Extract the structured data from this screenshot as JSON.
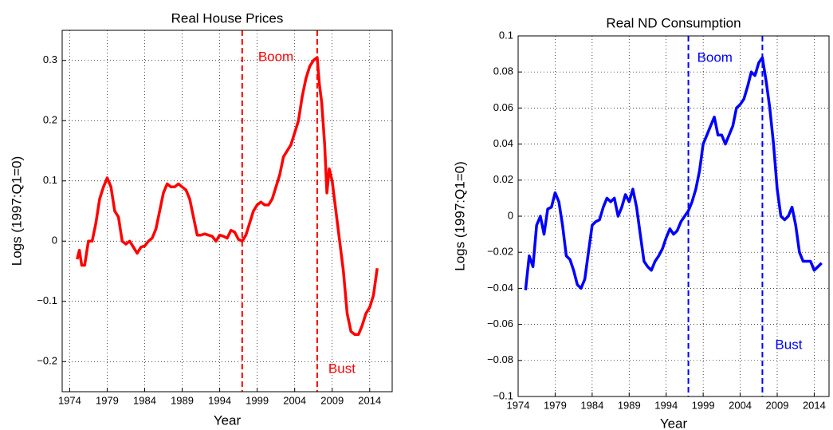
{
  "chart_data": [
    {
      "type": "line",
      "title": "Real House Prices",
      "x_label": "Year",
      "y_label": "Logs (1997:Q1=0)",
      "xlim": [
        1973,
        2017
      ],
      "ylim": [
        -0.25,
        0.35
      ],
      "xticks": [
        1974,
        1979,
        1984,
        1989,
        1994,
        1999,
        2004,
        2009,
        2014
      ],
      "yticks": [
        {
          "value": -0.2,
          "label": "−0.2"
        },
        {
          "value": -0.1,
          "label": "−0.1"
        },
        0,
        0.1,
        0.2,
        0.3
      ],
      "grid": true,
      "vlines": [
        {
          "x": 1997,
          "label": "Boom"
        },
        {
          "x": 2007,
          "label": "Bust"
        }
      ],
      "series": [
        {
          "color": "#ff0000",
          "x": [
            1975.0,
            1975.3,
            1975.6,
            1976,
            1976.5,
            1977,
            1977.5,
            1978,
            1978.5,
            1979,
            1979.5,
            1980,
            1980.5,
            1981,
            1981.5,
            1982,
            1982.5,
            1983,
            1983.5,
            1984,
            1984.5,
            1985,
            1985.5,
            1986,
            1986.5,
            1987,
            1987.5,
            1988,
            1988.5,
            1989,
            1989.5,
            1990,
            1990.5,
            1991,
            1991.5,
            1992,
            1992.5,
            1993,
            1993.5,
            1994,
            1994.5,
            1995,
            1995.5,
            1996,
            1996.5,
            1997,
            1997.5,
            1998,
            1998.5,
            1999,
            1999.5,
            2000,
            2000.5,
            2001,
            2001.5,
            2002,
            2002.5,
            2003,
            2003.5,
            2004,
            2004.5,
            2005,
            2005.5,
            2006,
            2006.5,
            2007,
            2007.3,
            2007.6,
            2008,
            2008.3,
            2008.6,
            2009,
            2009.5,
            2010,
            2010.5,
            2011,
            2011.5,
            2012,
            2012.5,
            2013,
            2013.5,
            2014,
            2014.5,
            2015
          ],
          "values": [
            -0.03,
            -0.015,
            -0.04,
            -0.04,
            0,
            0,
            0.03,
            0.07,
            0.09,
            0.105,
            0.09,
            0.05,
            0.04,
            0.0,
            -0.005,
            0,
            -0.01,
            -0.02,
            -0.01,
            -0.008,
            0.0,
            0.005,
            0.02,
            0.05,
            0.08,
            0.095,
            0.09,
            0.09,
            0.095,
            0.09,
            0.085,
            0.07,
            0.04,
            0.01,
            0.01,
            0.012,
            0.01,
            0.008,
            0.0,
            0.01,
            0.008,
            0.005,
            0.018,
            0.015,
            0.003,
            0.0,
            0.01,
            0.03,
            0.05,
            0.06,
            0.065,
            0.06,
            0.06,
            0.07,
            0.09,
            0.11,
            0.14,
            0.15,
            0.16,
            0.18,
            0.2,
            0.24,
            0.27,
            0.29,
            0.3,
            0.305,
            0.26,
            0.23,
            0.16,
            0.08,
            0.12,
            0.1,
            0.05,
            0.0,
            -0.05,
            -0.12,
            -0.15,
            -0.155,
            -0.155,
            -0.14,
            -0.12,
            -0.11,
            -0.09,
            -0.045
          ]
        }
      ]
    },
    {
      "type": "line",
      "title": "Real ND Consumption",
      "x_label": "Year",
      "y_label": "Logs (1997:Q1=0)",
      "xlim": [
        1974,
        2016
      ],
      "ylim": [
        -0.1,
        0.1
      ],
      "xticks": [
        1974,
        1979,
        1984,
        1989,
        1994,
        1999,
        2004,
        2009,
        2014
      ],
      "yticks": [
        {
          "value": -0.1,
          "label": "−0.1"
        },
        {
          "value": -0.08,
          "label": "−0.08"
        },
        {
          "value": -0.06,
          "label": "−0.06"
        },
        {
          "value": -0.04,
          "label": "−0.04"
        },
        {
          "value": -0.02,
          "label": "−0.02"
        },
        0,
        0.02,
        0.04,
        0.06,
        0.08,
        0.1
      ],
      "grid": true,
      "vlines": [
        {
          "x": 1997,
          "label": "Boom"
        },
        {
          "x": 2007,
          "label": "Bust"
        }
      ],
      "series": [
        {
          "color": "#0000ff",
          "x": [
            1975,
            1975.5,
            1976,
            1976.5,
            1977,
            1977.5,
            1978,
            1978.5,
            1979,
            1979.5,
            1980,
            1980.5,
            1981,
            1981.5,
            1982,
            1982.5,
            1983,
            1983.5,
            1984,
            1984.5,
            1985,
            1985.5,
            1986,
            1986.5,
            1987,
            1987.5,
            1988,
            1988.5,
            1989,
            1989.5,
            1990,
            1990.5,
            1991,
            1991.5,
            1992,
            1992.5,
            1993,
            1993.5,
            1994,
            1994.5,
            1995,
            1995.5,
            1996,
            1996.5,
            1997,
            1997.5,
            1998,
            1998.5,
            1999,
            1999.5,
            2000,
            2000.5,
            2001,
            2001.5,
            2002,
            2002.5,
            2003,
            2003.5,
            2004,
            2004.5,
            2005,
            2005.5,
            2006,
            2006.5,
            2007,
            2007.5,
            2008,
            2008.5,
            2009,
            2009.5,
            2010,
            2010.5,
            2011,
            2011.5,
            2012,
            2012.5,
            2013,
            2013.5,
            2014,
            2014.5,
            2015
          ],
          "values": [
            -0.041,
            -0.022,
            -0.028,
            -0.005,
            0.0,
            -0.01,
            0.004,
            0.005,
            0.013,
            0.008,
            -0.005,
            -0.022,
            -0.024,
            -0.03,
            -0.038,
            -0.04,
            -0.035,
            -0.02,
            -0.005,
            -0.003,
            -0.002,
            0.005,
            0.01,
            0.008,
            0.01,
            0.0,
            0.005,
            0.012,
            0.008,
            0.015,
            0.005,
            -0.01,
            -0.025,
            -0.028,
            -0.03,
            -0.025,
            -0.022,
            -0.018,
            -0.012,
            -0.007,
            -0.01,
            -0.008,
            -0.003,
            0.0,
            0.003,
            0.008,
            0.015,
            0.025,
            0.04,
            0.045,
            0.05,
            0.055,
            0.045,
            0.045,
            0.04,
            0.045,
            0.05,
            0.06,
            0.062,
            0.065,
            0.072,
            0.08,
            0.078,
            0.085,
            0.088,
            0.075,
            0.06,
            0.04,
            0.015,
            0.0,
            -0.002,
            0.0,
            0.005,
            -0.005,
            -0.02,
            -0.025,
            -0.025,
            -0.025,
            -0.03,
            -0.028,
            -0.026
          ]
        }
      ]
    }
  ]
}
